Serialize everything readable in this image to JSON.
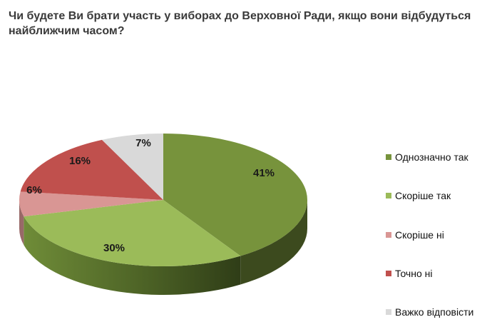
{
  "chart_data": {
    "type": "pie",
    "style": "3d",
    "title": "Чи будете Ви брати участь у виборах до Верховної Ради, якщо вони відбудуться найближчим часом?",
    "categories": [
      "Однозначно так",
      "Скоріше  так",
      "Скоріше  ні",
      "Точно ні",
      "Важко відповісти"
    ],
    "values": [
      41,
      30,
      6,
      16,
      7
    ],
    "labels": [
      "41%",
      "30%",
      "6%",
      "16%",
      "7%"
    ],
    "colors": [
      "#77933c",
      "#9bbb59",
      "#d99694",
      "#c0504d",
      "#d9d9d9"
    ],
    "legend_placement": "right"
  }
}
